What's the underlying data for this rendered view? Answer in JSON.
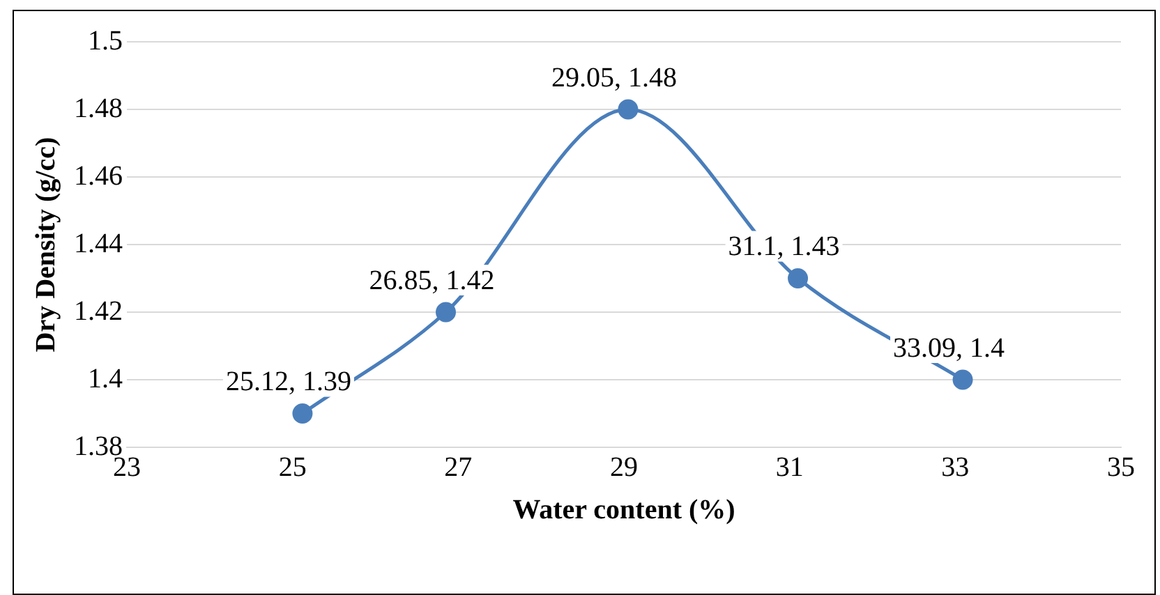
{
  "chart_data": {
    "type": "line",
    "xlabel": "Water content (%)",
    "ylabel": "Dry Density (g/cc)",
    "x": [
      25.12,
      26.85,
      29.05,
      31.1,
      33.09
    ],
    "series": [
      {
        "color": "#4a7ebb",
        "values": [
          1.39,
          1.42,
          1.48,
          1.43,
          1.4
        ],
        "value_labels": [
          "25.12, 1.39",
          "26.85, 1.42",
          "29.05, 1.48",
          "31.1, 1.43",
          "33.09, 1.4"
        ]
      }
    ],
    "xlim": [
      23,
      35
    ],
    "xticks": [
      23,
      25,
      27,
      29,
      31,
      33,
      35
    ],
    "ylim": [
      1.38,
      1.5
    ],
    "yticks": [
      1.38,
      1.4,
      1.42,
      1.44,
      1.46,
      1.48,
      1.5
    ],
    "grid": "y",
    "legend": false,
    "marker": "circle",
    "line_style": "solid"
  }
}
